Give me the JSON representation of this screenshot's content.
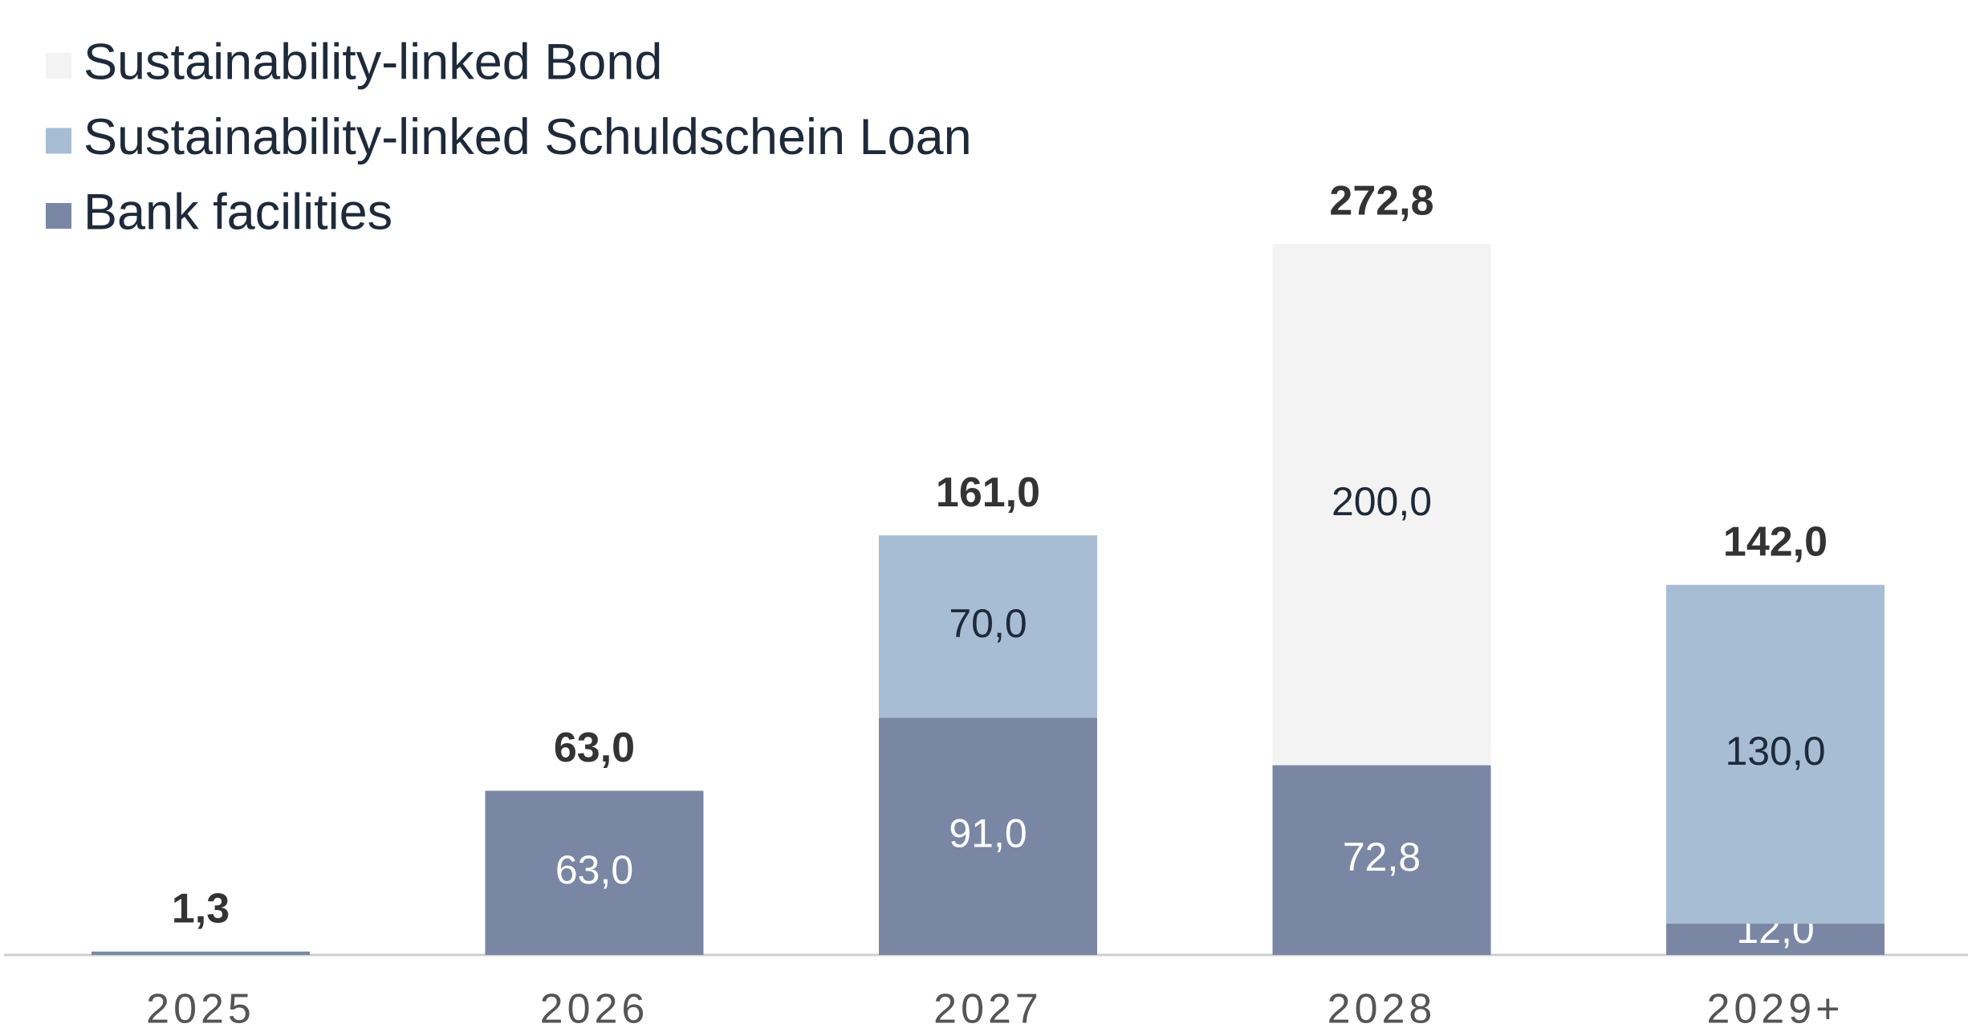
{
  "chart_data": {
    "type": "stacked_bar",
    "categories": [
      "2025",
      "2026",
      "2027",
      "2028",
      "2029+"
    ],
    "series": [
      {
        "name": "Sustainability-linked Bond",
        "color": "#f3f3f3",
        "values": [
          null,
          null,
          null,
          200.0,
          null
        ],
        "value_labels": [
          null,
          null,
          null,
          "200,0",
          null
        ]
      },
      {
        "name": "Sustainability-linked Schuldschein Loan",
        "color": "#a7bdd4",
        "values": [
          null,
          null,
          70.0,
          null,
          130.0
        ],
        "value_labels": [
          null,
          null,
          "70,0",
          null,
          "130,0"
        ]
      },
      {
        "name": "Bank facilities",
        "color": "#7a87a4",
        "values": [
          1.3,
          63.0,
          91.0,
          72.8,
          12.0
        ],
        "value_labels": [
          null,
          "63,0",
          "91,0",
          "72,8",
          "12,0"
        ]
      }
    ],
    "totals": [
      1.3,
      63.0,
      161.0,
      272.8,
      142.0
    ],
    "total_labels": [
      "1,3",
      "63,0",
      "161,0",
      "272,8",
      "142,0"
    ],
    "legend": "top-left"
  }
}
